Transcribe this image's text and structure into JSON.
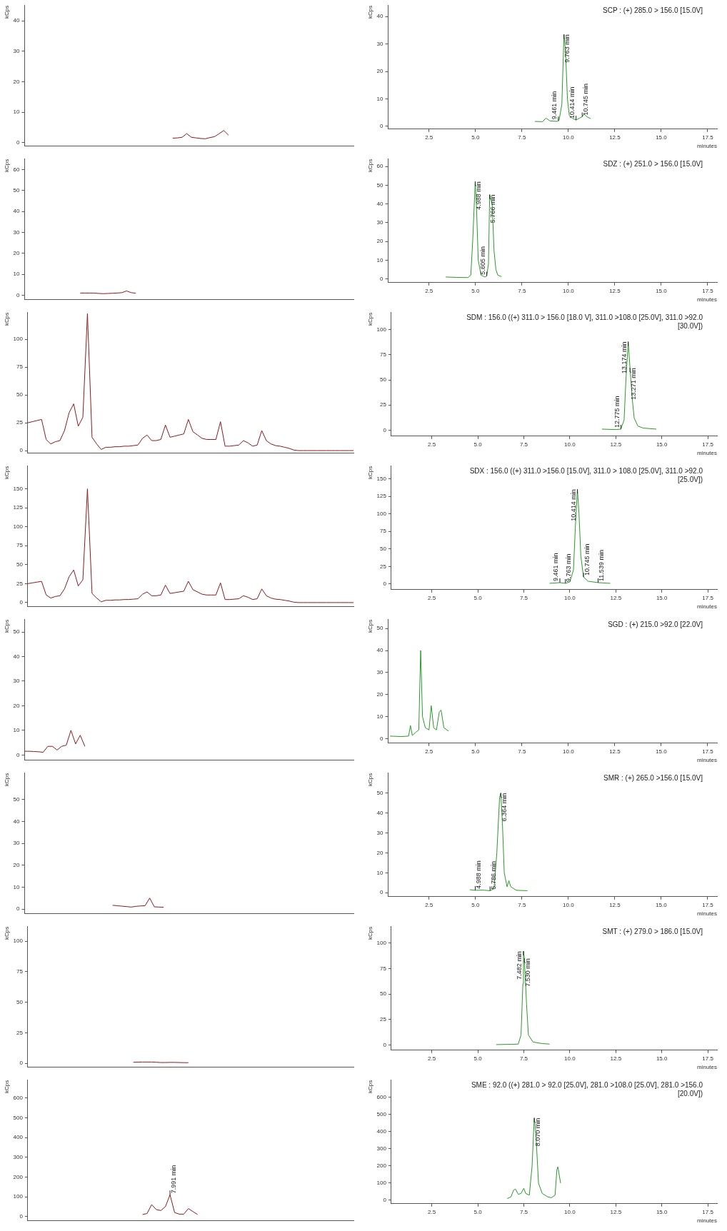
{
  "chart_data": [
    {
      "type": "line",
      "ylabel": "kCps",
      "color": "#8b1a1a",
      "ylim": [
        -1,
        45
      ],
      "yticks": [
        0,
        10,
        20,
        30,
        40
      ],
      "tick_labels": "y",
      "categories": [
        null,
        null,
        null,
        null,
        null,
        null,
        null,
        null,
        null,
        null,
        null,
        null,
        null,
        null,
        null,
        null,
        null,
        null,
        null,
        null,
        null,
        null,
        null,
        null,
        null,
        null,
        null,
        null,
        null,
        null,
        null,
        null,
        null,
        null,
        null,
        null,
        null,
        null,
        null,
        null,
        null,
        null,
        null,
        null,
        null,
        null,
        null,
        null,
        null,
        null,
        null,
        null,
        null,
        null,
        null,
        null,
        null,
        null,
        null,
        null,
        null,
        null,
        null,
        null,
        null,
        null,
        null,
        null,
        null,
        null,
        null,
        null
      ],
      "values": [
        null,
        null,
        null,
        null,
        null,
        null,
        null,
        null,
        null,
        null,
        null,
        null,
        null,
        null,
        null,
        null,
        null,
        null,
        null,
        null,
        null,
        null,
        null,
        null,
        null,
        null,
        null,
        null,
        null,
        null,
        null,
        null,
        1.5,
        1.6,
        1.8,
        3,
        1.8,
        1.6,
        1.4,
        1.3,
        1.7,
        2,
        3,
        4,
        2.5,
        null,
        null,
        null,
        null,
        null,
        null,
        null,
        null,
        null,
        null,
        null,
        null,
        null,
        null,
        null,
        null,
        null,
        null,
        null,
        null,
        null,
        null,
        null,
        null,
        null,
        null,
        null
      ]
    },
    {
      "type": "line",
      "title": "SCP : (+) 285.0 > 156.0 [15.0V]",
      "xlabel": "minutes",
      "ylabel": "kCps",
      "color": "#2a9a2a",
      "xlim": [
        0.3,
        18
      ],
      "ylim": [
        -1,
        44
      ],
      "yticks": [
        0,
        10,
        20,
        30,
        40
      ],
      "xticks": [
        2.5,
        {
          "value": 5,
          "label": "5.0"
        },
        7.5,
        {
          "value": 10,
          "label": "10.0"
        },
        12.5,
        {
          "value": 15,
          "label": "15.0"
        },
        17.5
      ],
      "x": [
        8.2,
        8.6,
        8.8,
        9.0,
        9.4,
        9.5,
        9.65,
        9.763,
        9.85,
        9.95,
        10.05,
        10.2,
        10.414,
        10.6,
        10.745,
        10.85,
        11.0,
        11.2
      ],
      "values": [
        1.8,
        1.7,
        3,
        2,
        1.8,
        2.2,
        8,
        33.5,
        27,
        10,
        4,
        3,
        2.3,
        3,
        3.5,
        4.5,
        3.5,
        2.8
      ],
      "annotations": [
        {
          "text": "9.461 min",
          "x": 9.461,
          "y": 2
        },
        {
          "text": "9.763 min",
          "x": 9.763,
          "y": 33.5
        },
        {
          "text": "10.414 min",
          "x": 10.414,
          "y": 2.3
        },
        {
          "text": "10.745 min",
          "x": 10.745,
          "y": 3.5
        }
      ]
    },
    {
      "type": "line",
      "ylabel": "kCps",
      "color": "#8b1a1a",
      "ylim": [
        -2,
        65
      ],
      "yticks": [
        0,
        10,
        20,
        30,
        40,
        50,
        60
      ],
      "tick_labels": "y",
      "categories": [
        null,
        null,
        null,
        null,
        null,
        null,
        null,
        null,
        null,
        null,
        null,
        null,
        null,
        null,
        null,
        null,
        null,
        null,
        null,
        null,
        null,
        null,
        null,
        null,
        null,
        null,
        null,
        null,
        null,
        null,
        null,
        null,
        null,
        null,
        null,
        null,
        null,
        null,
        null,
        null,
        null,
        null,
        null,
        null,
        null,
        null,
        null,
        null,
        null,
        null,
        null,
        null,
        null,
        null,
        null,
        null,
        null,
        null,
        null,
        null,
        null,
        null,
        null,
        null,
        null,
        null,
        null,
        null,
        null,
        null,
        null,
        null
      ],
      "values": [
        null,
        null,
        null,
        null,
        null,
        null,
        null,
        null,
        null,
        null,
        null,
        null,
        1,
        1,
        1,
        1,
        0.8,
        0.7,
        0.8,
        0.9,
        1,
        1.2,
        2,
        1.2,
        0.9,
        null,
        null,
        null,
        null,
        null,
        null,
        null,
        null,
        null,
        null,
        null,
        null,
        null,
        null,
        null,
        null,
        null,
        null,
        null,
        null,
        null,
        null,
        null,
        null,
        null,
        null,
        null,
        null,
        null,
        null,
        null,
        null,
        null,
        null,
        null,
        null,
        null,
        null,
        null,
        null,
        null,
        null,
        null,
        null,
        null,
        null,
        null
      ]
    },
    {
      "type": "line",
      "title": "SDZ : (+) 251.0 > 156.0 [15.0V]",
      "xlabel": "minutes",
      "ylabel": "kCps",
      "color": "#2a9a2a",
      "xlim": [
        0.3,
        18
      ],
      "ylim": [
        -2,
        64
      ],
      "yticks": [
        0,
        10,
        20,
        30,
        40,
        50,
        60
      ],
      "xticks": [
        2.5,
        {
          "value": 5,
          "label": "5.0"
        },
        7.5,
        {
          "value": 10,
          "label": "10.0"
        },
        12.5,
        {
          "value": 15,
          "label": "15.0"
        },
        17.5
      ],
      "x": [
        3.4,
        4.0,
        4.6,
        4.75,
        4.85,
        4.988,
        5.05,
        5.15,
        5.3,
        5.5,
        5.605,
        5.7,
        5.766,
        5.9,
        6.0,
        6.1,
        6.2,
        6.4
      ],
      "values": [
        1,
        0.8,
        0.7,
        2,
        20,
        52,
        40,
        10,
        2,
        1,
        1.5,
        8,
        45,
        40,
        15,
        5,
        2,
        1.2
      ],
      "annotations": [
        {
          "text": "4.988 min",
          "x": 4.988,
          "y": 52
        },
        {
          "text": "5.605 min",
          "x": 5.605,
          "y": 1.5
        },
        {
          "text": "5.766 min",
          "x": 5.766,
          "y": 45
        }
      ]
    },
    {
      "type": "line",
      "ylabel": "kCps",
      "color": "#8b1a1a",
      "ylim": [
        -2,
        124
      ],
      "yticks": [
        0,
        25,
        50,
        75,
        100
      ],
      "tick_labels": "y",
      "categories": [
        null,
        null,
        null,
        null,
        null,
        null,
        null,
        null,
        null,
        null,
        null,
        null,
        null,
        null,
        null,
        null,
        null,
        null,
        null,
        null,
        null,
        null,
        null,
        null,
        null,
        null,
        null,
        null,
        null,
        null,
        null,
        null,
        null,
        null,
        null,
        null,
        null,
        null,
        null,
        null,
        null,
        null,
        null,
        null,
        null,
        null,
        null,
        null,
        null,
        null,
        null,
        null,
        null,
        null,
        null,
        null,
        null,
        null,
        null,
        null,
        null,
        null,
        null,
        null,
        null,
        null,
        null,
        null,
        null,
        null,
        null,
        null
      ],
      "values": [
        25,
        26,
        27,
        28,
        10,
        6,
        8,
        9,
        18,
        34,
        42,
        22,
        30,
        123,
        12,
        6,
        1,
        3,
        3,
        3.5,
        3.5,
        4,
        4,
        4.5,
        5,
        11,
        14,
        9,
        9,
        10,
        23,
        12,
        13,
        14,
        15,
        28,
        17,
        14,
        11,
        10,
        10,
        10,
        26,
        4,
        4,
        4.5,
        5,
        9,
        7,
        4,
        5,
        18,
        9,
        6,
        4.5,
        4,
        3,
        2,
        0.5,
        0,
        0,
        0,
        0,
        0,
        0,
        0,
        0,
        0,
        0,
        0,
        0,
        0
      ]
    },
    {
      "type": "line",
      "title": "SDM : 156.0 ((+) 311.0 > 156.0 [18.0 V], 311.0 >108.0 [25.0V], 311.0 >92.0 [30.0V])",
      "xlabel": "minutes",
      "ylabel": "kCps",
      "color": "#2a9a2a",
      "xlim": [
        0.3,
        18
      ],
      "ylim": [
        -6,
        117
      ],
      "yticks": [
        0,
        25,
        50,
        75,
        100
      ],
      "xticks": [
        2.5,
        {
          "value": 5,
          "label": "5.0"
        },
        7.5,
        {
          "value": 10,
          "label": "10.0"
        },
        12.5,
        {
          "value": 15,
          "label": "15.0"
        },
        17.5
      ],
      "x": [
        11.75,
        12.5,
        12.775,
        12.95,
        13.05,
        13.174,
        13.271,
        13.4,
        13.5,
        13.7,
        14.0,
        14.7
      ],
      "values": [
        1,
        0.5,
        1,
        10,
        50,
        88,
        62,
        30,
        12,
        4,
        2,
        1
      ],
      "annotations": [
        {
          "text": "12.775 min",
          "x": 12.775,
          "y": 1
        },
        {
          "text": "13.174 min",
          "x": 13.174,
          "y": 88
        },
        {
          "text": "13.271 min",
          "x": 13.271,
          "y": 62
        }
      ]
    },
    {
      "type": "line",
      "ylabel": "kCps",
      "color": "#8b1a1a",
      "ylim": [
        -5,
        180
      ],
      "yticks": [
        0,
        25,
        50,
        75,
        100,
        125,
        150
      ],
      "tick_labels": "y",
      "categories": [
        null,
        null,
        null,
        null,
        null,
        null,
        null,
        null,
        null,
        null,
        null,
        null,
        null,
        null,
        null,
        null,
        null,
        null,
        null,
        null,
        null,
        null,
        null,
        null,
        null,
        null,
        null,
        null,
        null,
        null,
        null,
        null,
        null,
        null,
        null,
        null,
        null,
        null,
        null,
        null,
        null,
        null,
        null,
        null,
        null,
        null,
        null,
        null,
        null,
        null,
        null,
        null,
        null,
        null,
        null,
        null,
        null,
        null,
        null,
        null,
        null,
        null,
        null,
        null,
        null,
        null,
        null,
        null,
        null,
        null,
        null,
        null
      ],
      "values": [
        25,
        26,
        27,
        28,
        10,
        6,
        8,
        9,
        18,
        34,
        43,
        22,
        30,
        150,
        12,
        6,
        1,
        3,
        3,
        3.5,
        3.5,
        4,
        4,
        4.5,
        5,
        11,
        14,
        9,
        9,
        10,
        23,
        12,
        13,
        14,
        15,
        28,
        17,
        14,
        11,
        10,
        10,
        10,
        26,
        4,
        4,
        4.5,
        5,
        9,
        7,
        4,
        5,
        18,
        9,
        6,
        4.5,
        4,
        3,
        2,
        0.5,
        0,
        0,
        0,
        0,
        0,
        0,
        0,
        0,
        0,
        0,
        0,
        0,
        0
      ]
    },
    {
      "type": "line",
      "title": "SDX : 156.0 ((+) 311.0 >156.0 [15.0V], 311.0 > 108.0 [25.0V], 311.0 >92.0 [25.0V])",
      "xlabel": "minutes",
      "ylabel": "kCps",
      "color": "#2a9a2a",
      "xlim": [
        0.3,
        18
      ],
      "ylim": [
        -8,
        168
      ],
      "yticks": [
        0,
        25,
        50,
        75,
        100,
        125,
        150
      ],
      "xticks": [
        2.5,
        {
          "value": 5,
          "label": "5.0"
        },
        7.5,
        {
          "value": 10,
          "label": "10.0"
        },
        12.5,
        {
          "value": 15,
          "label": "15.0"
        },
        17.5
      ],
      "x": [
        8.9,
        9.461,
        9.763,
        10.0,
        10.2,
        10.3,
        10.414,
        10.5,
        10.6,
        10.745,
        11.0,
        11.539,
        12.2
      ],
      "values": [
        1,
        2,
        1,
        3,
        20,
        80,
        135,
        100,
        40,
        10,
        4,
        2,
        1
      ],
      "annotations": [
        {
          "text": "9.461 min",
          "x": 9.461,
          "y": 2
        },
        {
          "text": "9.763 min",
          "x": 9.763,
          "y": 1
        },
        {
          "text": "10.414 min",
          "x": 10.414,
          "y": 135
        },
        {
          "text": "10.745 min",
          "x": 10.745,
          "y": 10
        },
        {
          "text": "11.539 min",
          "x": 11.539,
          "y": 2
        }
      ]
    },
    {
      "type": "line",
      "ylabel": "kCps",
      "color": "#8b1a1a",
      "ylim": [
        -2,
        55
      ],
      "yticks": [
        0,
        10,
        20,
        30,
        40,
        50
      ],
      "tick_labels": "y",
      "categories": [
        null,
        null,
        null,
        null,
        null,
        null,
        null,
        null,
        null,
        null,
        null,
        null,
        null,
        null,
        null,
        null,
        null,
        null,
        null,
        null,
        null,
        null,
        null,
        null,
        null,
        null,
        null,
        null,
        null,
        null,
        null,
        null,
        null,
        null,
        null,
        null,
        null,
        null,
        null,
        null,
        null,
        null,
        null,
        null,
        null,
        null,
        null,
        null,
        null,
        null,
        null,
        null,
        null,
        null,
        null,
        null,
        null,
        null,
        null,
        null,
        null,
        null,
        null,
        null,
        null,
        null,
        null,
        null,
        null,
        null,
        null,
        null
      ],
      "values": [
        1.5,
        1.5,
        1.4,
        1.3,
        1.1,
        3.5,
        3.5,
        2,
        3.5,
        4,
        10,
        4.5,
        8,
        3.5,
        null,
        null,
        null,
        null,
        null,
        null,
        null,
        null,
        null,
        null,
        null,
        null,
        null,
        null,
        null,
        null,
        null,
        null,
        null,
        null,
        null,
        null,
        null,
        null,
        null,
        null,
        null,
        null,
        null,
        null,
        null,
        null,
        null,
        null,
        null,
        null,
        null,
        null,
        null,
        null,
        null,
        null,
        null,
        null,
        null,
        null,
        null,
        null,
        null,
        null,
        null,
        null,
        null,
        null,
        null,
        null,
        null,
        null
      ]
    },
    {
      "type": "line",
      "title": "SGD : (+) 215.0 >92.0 [22.0V]",
      "xlabel": "minutes",
      "ylabel": "kCps",
      "color": "#2a9a2a",
      "xlim": [
        0.3,
        18
      ],
      "ylim": [
        -2,
        54
      ],
      "yticks": [
        0,
        10,
        20,
        30,
        40,
        50
      ],
      "xticks": [
        2.5,
        {
          "value": 5,
          "label": "5.0"
        },
        7.5,
        {
          "value": 10,
          "label": "10.0"
        },
        12.5,
        {
          "value": 15,
          "label": "15.0"
        },
        17.5
      ],
      "x": [
        0.4,
        1.0,
        1.4,
        1.5,
        1.6,
        1.8,
        1.95,
        2.05,
        2.15,
        2.3,
        2.5,
        2.62,
        2.75,
        2.9,
        3.05,
        3.15,
        3.3,
        3.55
      ],
      "values": [
        1.2,
        1.0,
        1.2,
        6,
        1.5,
        3,
        4,
        40,
        10,
        5,
        4,
        15,
        5,
        4,
        12,
        13,
        5,
        3.5
      ]
    },
    {
      "type": "line",
      "ylabel": "kCps",
      "color": "#8b1a1a",
      "ylim": [
        -2,
        62
      ],
      "yticks": [
        0,
        10,
        20,
        30,
        40,
        50
      ],
      "tick_labels": "y",
      "categories": [
        null,
        null,
        null,
        null,
        null,
        null,
        null,
        null,
        null,
        null,
        null,
        null,
        null,
        null,
        null,
        null,
        null,
        null,
        null,
        null,
        null,
        null,
        null,
        null,
        null,
        null,
        null,
        null,
        null,
        null,
        null,
        null,
        null,
        null,
        null,
        null,
        null,
        null,
        null,
        null,
        null,
        null,
        null,
        null,
        null,
        null,
        null,
        null,
        null,
        null,
        null,
        null,
        null,
        null,
        null,
        null,
        null,
        null,
        null,
        null,
        null,
        null,
        null,
        null,
        null,
        null,
        null,
        null,
        null,
        null,
        null,
        null
      ],
      "values": [
        null,
        null,
        null,
        null,
        null,
        null,
        null,
        null,
        null,
        null,
        null,
        null,
        null,
        null,
        null,
        null,
        null,
        null,
        null,
        1.7,
        1.5,
        1.3,
        1.1,
        0.9,
        1.2,
        1.4,
        1.5,
        5,
        1,
        0.9,
        0.8,
        null,
        null,
        null,
        null,
        null,
        null,
        null,
        null,
        null,
        null,
        null,
        null,
        null,
        null,
        null,
        null,
        null,
        null,
        null,
        null,
        null,
        null,
        null,
        null,
        null,
        null,
        null,
        null,
        null,
        null,
        null,
        null,
        null,
        null,
        null,
        null,
        null,
        null,
        null,
        null,
        null
      ]
    },
    {
      "type": "line",
      "title": "SMR : (+) 265.0 >156.0 [15.0V]",
      "xlabel": "minutes",
      "ylabel": "kCps",
      "color": "#2a9a2a",
      "xlim": [
        0.3,
        18
      ],
      "ylim": [
        -2,
        60
      ],
      "yticks": [
        0,
        10,
        20,
        30,
        40,
        50
      ],
      "xticks": [
        2.5,
        {
          "value": 5,
          "label": "5.0"
        },
        7.5,
        {
          "value": 10,
          "label": "10.0"
        },
        12.5,
        {
          "value": 15,
          "label": "15.0"
        },
        17.5
      ],
      "x": [
        4.7,
        4.988,
        5.4,
        5.786,
        6.0,
        6.15,
        6.3,
        6.364,
        6.45,
        6.55,
        6.7,
        6.8,
        6.9,
        7.2,
        7.8
      ],
      "values": [
        1.5,
        1.2,
        1.3,
        1,
        2,
        20,
        48,
        50,
        35,
        10,
        3,
        6,
        3,
        1.2,
        1
      ],
      "annotations": [
        {
          "text": "4.988 min",
          "x": 4.988,
          "y": 1.2
        },
        {
          "text": "5.786 min",
          "x": 5.786,
          "y": 1
        },
        {
          "text": "6.364 min",
          "x": 6.364,
          "y": 50
        }
      ]
    },
    {
      "type": "line",
      "ylabel": "kCps",
      "color": "#8b1a1a",
      "ylim": [
        -3,
        112
      ],
      "yticks": [
        0,
        25,
        50,
        75,
        100
      ],
      "tick_labels": "y",
      "categories": [
        null,
        null,
        null,
        null,
        null,
        null,
        null,
        null,
        null,
        null,
        null,
        null,
        null,
        null,
        null,
        null,
        null,
        null,
        null,
        null,
        null,
        null,
        null,
        null,
        null,
        null,
        null,
        null,
        null,
        null,
        null,
        null,
        null,
        null,
        null,
        null,
        null,
        null,
        null,
        null,
        null,
        null,
        null,
        null,
        null,
        null,
        null,
        null,
        null,
        null,
        null,
        null,
        null,
        null,
        null,
        null,
        null,
        null,
        null,
        null,
        null,
        null,
        null,
        null,
        null,
        null,
        null,
        null,
        null,
        null,
        null,
        null
      ],
      "values": [
        null,
        null,
        null,
        null,
        null,
        null,
        null,
        null,
        null,
        null,
        null,
        null,
        null,
        null,
        null,
        null,
        null,
        null,
        null,
        null,
        null,
        null,
        null,
        0.8,
        0.9,
        1,
        1,
        1,
        0.8,
        0.6,
        0.6,
        0.7,
        0.7,
        0.6,
        0.5,
        0.5,
        null,
        null,
        null,
        null,
        null,
        null,
        null,
        null,
        null,
        null,
        null,
        null,
        null,
        null,
        null,
        null,
        null,
        null,
        null,
        null,
        null,
        null,
        null,
        null,
        null,
        null,
        null,
        null,
        null,
        null,
        null,
        null,
        null,
        null,
        null,
        null
      ]
    },
    {
      "type": "line",
      "title": "SMT : (+) 279.0 > 186.0 [15.0V]",
      "xlabel": "minutes",
      "ylabel": "kCps",
      "color": "#2a9a2a",
      "xlim": [
        0.3,
        18
      ],
      "ylim": [
        -5,
        116
      ],
      "yticks": [
        0,
        25,
        50,
        75,
        100
      ],
      "xticks": [
        2.5,
        {
          "value": 5,
          "label": "5.0"
        },
        7.5,
        {
          "value": 10,
          "label": "10.0"
        },
        12.5,
        {
          "value": 15,
          "label": "15.0"
        },
        17.5
      ],
      "x": [
        6.0,
        6.8,
        7.2,
        7.35,
        7.45,
        7.482,
        7.53,
        7.65,
        7.75,
        8.0,
        8.5,
        8.9
      ],
      "values": [
        0.5,
        0.8,
        1,
        10,
        60,
        92,
        85,
        40,
        10,
        3,
        1.5,
        1
      ],
      "annotations": [
        {
          "text": "7.482 min",
          "x": 7.482,
          "y": 92
        },
        {
          "text": "7.530 min",
          "x": 7.53,
          "y": 85
        }
      ]
    },
    {
      "type": "line",
      "ylabel": "kCps",
      "color": "#8b1a1a",
      "ylim": [
        -20,
        690
      ],
      "yticks": [
        0,
        100,
        200,
        300,
        400,
        500,
        600
      ],
      "tick_labels": "y",
      "categories": [
        null,
        null,
        null,
        null,
        null,
        null,
        null,
        null,
        null,
        null,
        null,
        null,
        null,
        null,
        null,
        null,
        null,
        null,
        null,
        null,
        null,
        null,
        null,
        null,
        null,
        null,
        null,
        null,
        null,
        null,
        null,
        null,
        null,
        null,
        null,
        null,
        null,
        null,
        null,
        null,
        null,
        null,
        null,
        null,
        null,
        null,
        null,
        null,
        null,
        null,
        null,
        null,
        null,
        null,
        null,
        null,
        null,
        null,
        null,
        null,
        null,
        null,
        null,
        null,
        null,
        null,
        null,
        null,
        null,
        null,
        null,
        null
      ],
      "values": [
        null,
        null,
        null,
        null,
        null,
        null,
        null,
        null,
        null,
        null,
        null,
        null,
        null,
        null,
        null,
        null,
        null,
        null,
        null,
        null,
        null,
        null,
        null,
        null,
        null,
        10,
        15,
        60,
        35,
        30,
        50,
        110,
        20,
        12,
        12,
        40,
        25,
        10,
        null,
        null,
        null,
        null,
        null,
        null,
        null,
        null,
        null,
        null,
        null,
        null,
        null,
        null,
        null,
        null,
        null,
        null,
        null,
        null,
        null,
        null,
        null,
        null,
        null,
        null,
        null,
        null,
        null,
        null,
        null,
        null,
        null,
        null
      ],
      "annotations": [
        {
          "text": "7.991 min",
          "y": 110
        }
      ]
    },
    {
      "type": "line",
      "title": "SME : 92.0 ((+) 281.0 > 92.0 [25.0V], 281.0 >108.0 [25.0V], 281.0 >156.0 [20.0V])",
      "xlabel": "minutes",
      "ylabel": "kCps",
      "color": "#2a9a2a",
      "xlim": [
        0.3,
        18
      ],
      "ylim": [
        -20,
        700
      ],
      "yticks": [
        0,
        100,
        200,
        300,
        400,
        500,
        600
      ],
      "xticks": [
        2.5,
        {
          "value": 5,
          "label": "5.0"
        },
        7.5,
        {
          "value": 10,
          "label": "10.0"
        },
        12.5,
        {
          "value": 15,
          "label": "15.0"
        },
        17.5
      ],
      "x": [
        6.6,
        6.8,
        6.95,
        7.05,
        7.2,
        7.35,
        7.5,
        7.6,
        7.8,
        7.95,
        8.07,
        8.15,
        8.3,
        8.5,
        8.8,
        9.0,
        9.2,
        9.3,
        9.35,
        9.5
      ],
      "values": [
        10,
        20,
        60,
        65,
        35,
        40,
        70,
        40,
        30,
        200,
        480,
        400,
        100,
        40,
        20,
        15,
        30,
        180,
        195,
        100
      ],
      "annotations": [
        {
          "text": "8.070 min",
          "x": 8.07,
          "y": 480
        }
      ]
    }
  ]
}
